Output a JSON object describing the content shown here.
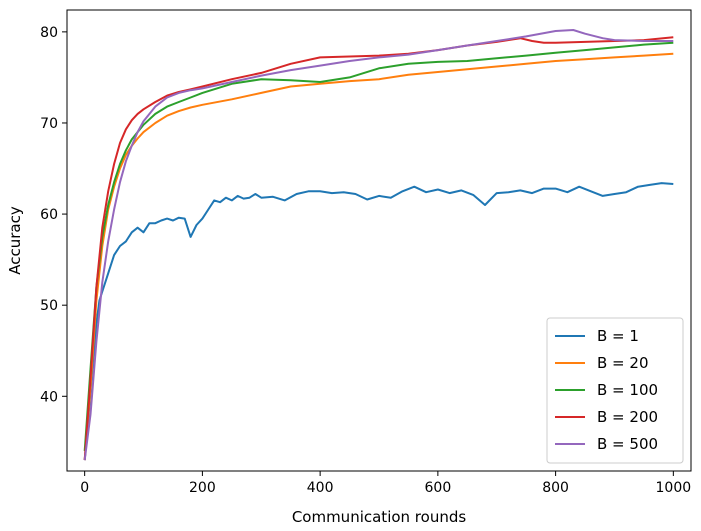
{
  "chart_data": {
    "type": "line",
    "title": "",
    "xlabel": "Communication rounds",
    "ylabel": "Accuracy",
    "xlim": [
      -30,
      1030
    ],
    "ylim": [
      31.8,
      82.4
    ],
    "xticks": [
      0,
      200,
      400,
      600,
      800,
      1000
    ],
    "yticks": [
      40,
      50,
      60,
      70,
      80
    ],
    "grid": false,
    "legend_position": "lower-right",
    "series": [
      {
        "name": "B = 1",
        "color": "#1f77b4",
        "x": [
          0,
          5,
          10,
          15,
          20,
          25,
          30,
          40,
          50,
          60,
          70,
          80,
          90,
          100,
          110,
          120,
          130,
          140,
          150,
          160,
          170,
          180,
          190,
          200,
          210,
          220,
          230,
          240,
          250,
          260,
          270,
          280,
          290,
          300,
          320,
          340,
          360,
          380,
          400,
          420,
          440,
          460,
          480,
          500,
          520,
          540,
          560,
          580,
          600,
          620,
          640,
          660,
          680,
          700,
          720,
          740,
          760,
          780,
          800,
          820,
          840,
          860,
          880,
          900,
          920,
          940,
          960,
          980,
          1000
        ],
        "y": [
          33.0,
          36.5,
          40.5,
          44.5,
          48.0,
          50.5,
          51.5,
          53.5,
          55.5,
          56.5,
          57.0,
          58.0,
          58.5,
          58.0,
          59.0,
          59.0,
          59.3,
          59.5,
          59.3,
          59.6,
          59.5,
          57.5,
          58.8,
          59.5,
          60.5,
          61.5,
          61.3,
          61.8,
          61.5,
          62.0,
          61.7,
          61.8,
          62.2,
          61.8,
          61.9,
          61.5,
          62.2,
          62.5,
          62.5,
          62.3,
          62.4,
          62.2,
          61.6,
          62.0,
          61.8,
          62.5,
          63.0,
          62.4,
          62.7,
          62.3,
          62.6,
          62.1,
          61.0,
          62.3,
          62.4,
          62.6,
          62.3,
          62.8,
          62.8,
          62.4,
          63.0,
          62.5,
          62.0,
          62.2,
          62.4,
          63.0,
          63.2,
          63.4,
          63.3
        ]
      },
      {
        "name": "B = 20",
        "color": "#ff7f0e",
        "x": [
          0,
          10,
          20,
          30,
          40,
          50,
          60,
          70,
          80,
          90,
          100,
          120,
          140,
          160,
          180,
          200,
          250,
          300,
          350,
          400,
          450,
          500,
          550,
          600,
          650,
          700,
          750,
          800,
          850,
          900,
          950,
          1000
        ],
        "y": [
          33.0,
          41.0,
          50.5,
          56.5,
          60.5,
          63.0,
          65.0,
          66.5,
          67.5,
          68.3,
          69.0,
          70.0,
          70.8,
          71.3,
          71.7,
          72.0,
          72.6,
          73.3,
          74.0,
          74.3,
          74.6,
          74.8,
          75.3,
          75.6,
          75.9,
          76.2,
          76.5,
          76.8,
          77.0,
          77.2,
          77.4,
          77.6
        ]
      },
      {
        "name": "B = 100",
        "color": "#2ca02c",
        "x": [
          0,
          10,
          20,
          30,
          40,
          50,
          60,
          70,
          80,
          90,
          100,
          120,
          140,
          160,
          180,
          200,
          250,
          300,
          350,
          400,
          450,
          500,
          550,
          600,
          650,
          700,
          750,
          800,
          850,
          900,
          950,
          1000
        ],
        "y": [
          34.0,
          43.0,
          52.0,
          57.5,
          61.0,
          63.5,
          65.5,
          67.0,
          68.2,
          69.0,
          69.8,
          71.0,
          71.8,
          72.3,
          72.8,
          73.3,
          74.3,
          74.8,
          74.7,
          74.5,
          75.0,
          76.0,
          76.5,
          76.7,
          76.8,
          77.1,
          77.4,
          77.7,
          78.0,
          78.3,
          78.6,
          78.8
        ]
      },
      {
        "name": "B = 200",
        "color": "#d62728",
        "x": [
          0,
          10,
          20,
          30,
          40,
          50,
          60,
          70,
          80,
          90,
          100,
          120,
          140,
          160,
          180,
          200,
          250,
          300,
          350,
          400,
          450,
          500,
          550,
          600,
          650,
          700,
          740,
          760,
          780,
          800,
          850,
          900,
          950,
          1000
        ],
        "y": [
          33.0,
          42.0,
          52.0,
          58.5,
          62.5,
          65.5,
          67.8,
          69.3,
          70.3,
          71.0,
          71.5,
          72.3,
          73.0,
          73.4,
          73.7,
          74.0,
          74.8,
          75.5,
          76.5,
          77.2,
          77.3,
          77.4,
          77.6,
          78.0,
          78.5,
          78.9,
          79.3,
          79.0,
          78.8,
          78.8,
          78.9,
          79.0,
          79.1,
          79.4
        ]
      },
      {
        "name": "B = 500",
        "color": "#9467bd",
        "x": [
          0,
          10,
          20,
          30,
          40,
          50,
          60,
          70,
          80,
          90,
          100,
          120,
          140,
          160,
          180,
          200,
          250,
          300,
          350,
          400,
          450,
          500,
          550,
          600,
          650,
          700,
          750,
          800,
          830,
          850,
          880,
          900,
          950,
          1000
        ],
        "y": [
          33.0,
          38.0,
          46.0,
          52.5,
          57.0,
          60.5,
          63.5,
          65.8,
          67.5,
          69.0,
          70.2,
          71.8,
          72.8,
          73.3,
          73.6,
          73.8,
          74.5,
          75.2,
          75.8,
          76.3,
          76.8,
          77.2,
          77.5,
          78.0,
          78.5,
          79.0,
          79.5,
          80.1,
          80.2,
          79.8,
          79.3,
          79.1,
          79.0,
          79.0
        ]
      }
    ]
  }
}
